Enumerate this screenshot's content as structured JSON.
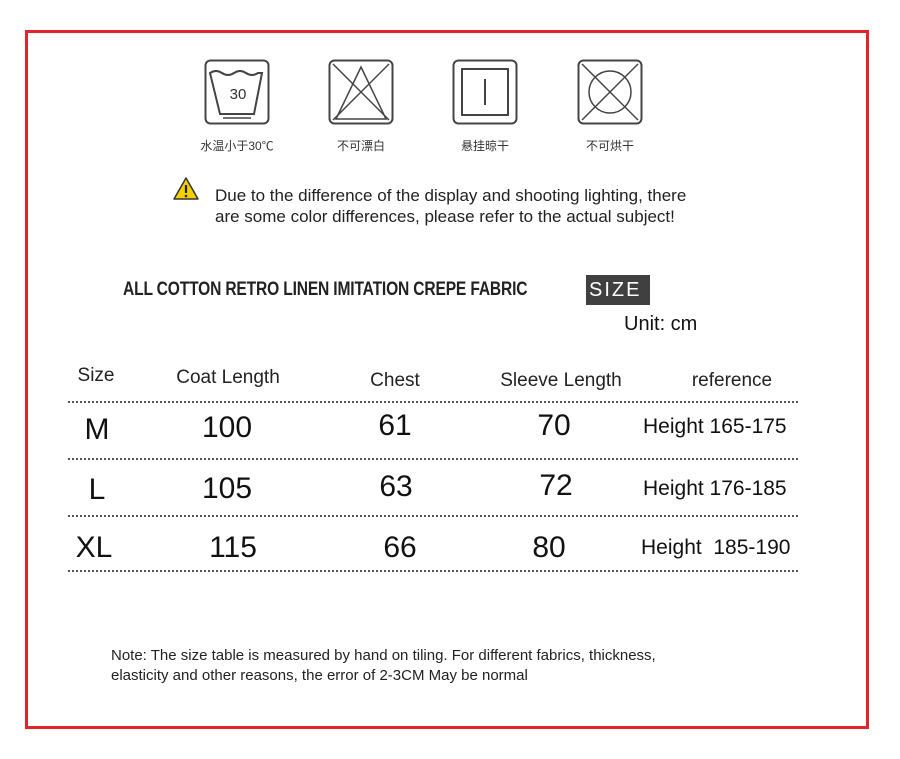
{
  "care_icons": [
    {
      "name": "wash-30-icon",
      "number": "30",
      "caption": "水温小于30℃"
    },
    {
      "name": "no-bleach-icon",
      "caption": "不可漂白"
    },
    {
      "name": "hang-dry-icon",
      "caption": "悬挂晾干"
    },
    {
      "name": "no-tumble-dry-icon",
      "caption": "不可烘干"
    }
  ],
  "warning": {
    "line1": "Due to the difference of the display and shooting lighting, there",
    "line2": "are some color differences, please refer to the actual subject!"
  },
  "title": "ALL COTTON RETRO LINEN IMITATION CREPE FABRIC",
  "size_tag": "SIZE",
  "unit": "Unit: cm",
  "table": {
    "headers": [
      "Size",
      "Coat Length",
      "Chest",
      "Sleeve Length",
      "reference"
    ],
    "rows": [
      [
        "M",
        "100",
        "61",
        "70",
        "Height 165-175"
      ],
      [
        "L",
        "105",
        "63",
        "72",
        "Height 176-185"
      ],
      [
        "XL",
        "115",
        "66",
        "80",
        "Height  185-190"
      ]
    ]
  },
  "note": {
    "line1": "Note: The size table is measured by hand on tiling. For different fabrics, thickness,",
    "line2": "elasticity and other reasons, the error of 2-3CM May be normal"
  },
  "colors": {
    "border": "#e0262b",
    "warning": "#f5d000",
    "tag": "#404040"
  }
}
